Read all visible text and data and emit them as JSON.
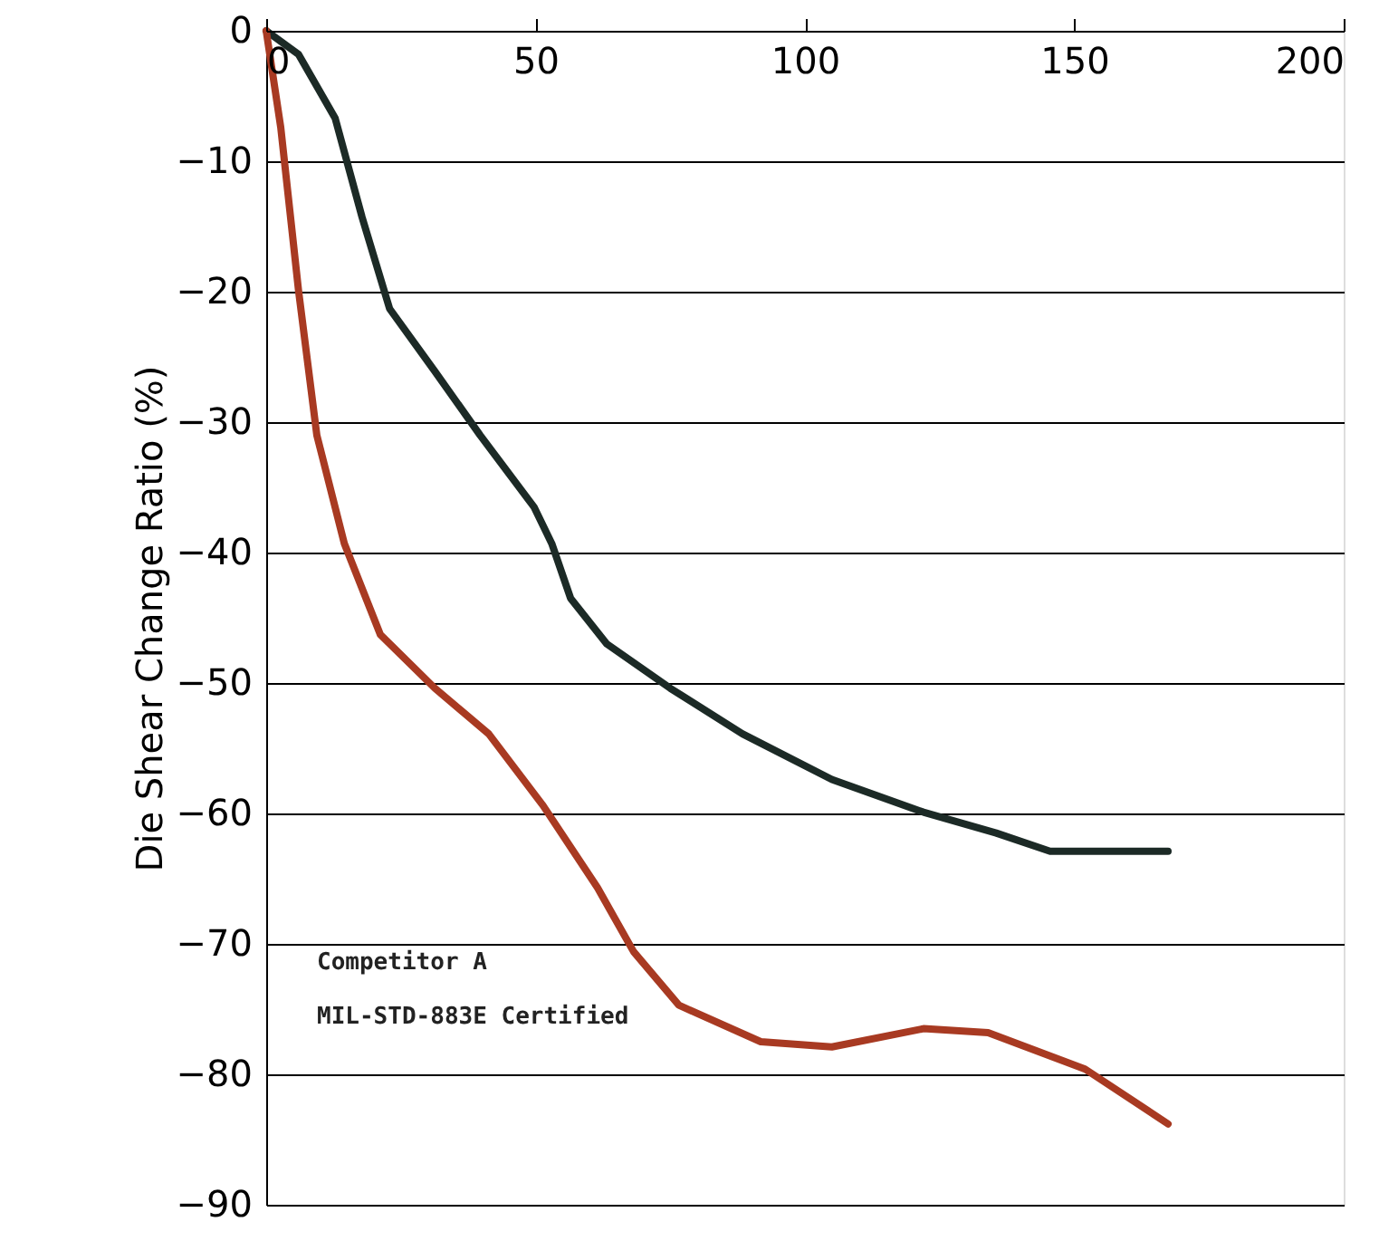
{
  "chart_data": {
    "type": "line",
    "ylabel": "Die Shear Change Ratio (%)",
    "xlim": [
      0,
      200
    ],
    "xticks": [
      0,
      50,
      100,
      150,
      200
    ],
    "ylim": [
      -90,
      0
    ],
    "yticks": [
      0,
      -10,
      -20,
      -30,
      -40,
      -50,
      -60,
      -70,
      -80,
      -90
    ],
    "grid": "y",
    "legend": false,
    "series": [
      {
        "color": "#1c2a26",
        "x": [
          0,
          6,
          12.8,
          17.8,
          22.9,
          31.3,
          39.7,
          49.7,
          53,
          56.5,
          63.2,
          75,
          88.4,
          105,
          122,
          135.5,
          145.5,
          167.4
        ],
        "values": [
          0,
          -1.8,
          -6.7,
          -14.3,
          -21.3,
          -26.1,
          -31,
          -36.5,
          -39.3,
          -43.5,
          -47,
          -50.4,
          -53.9,
          -57.4,
          -59.9,
          -61.5,
          -62.9,
          -62.9
        ]
      },
      {
        "name": "Competitor A\nMIL-STD-883E Certified",
        "color": "#a83a22",
        "x": [
          0,
          2.7,
          6,
          9.4,
          14.5,
          21.2,
          31.3,
          41.3,
          51.4,
          61.5,
          68.2,
          76.6,
          91.8,
          105,
          122,
          134,
          152,
          167.4
        ],
        "values": [
          0,
          -7.4,
          -19.9,
          -31,
          -39.3,
          -46.3,
          -50.4,
          -53.9,
          -59.4,
          -65.7,
          -70.6,
          -74.7,
          -77.5,
          -77.9,
          -76.5,
          -76.8,
          -79.6,
          -83.8
        ]
      }
    ]
  }
}
